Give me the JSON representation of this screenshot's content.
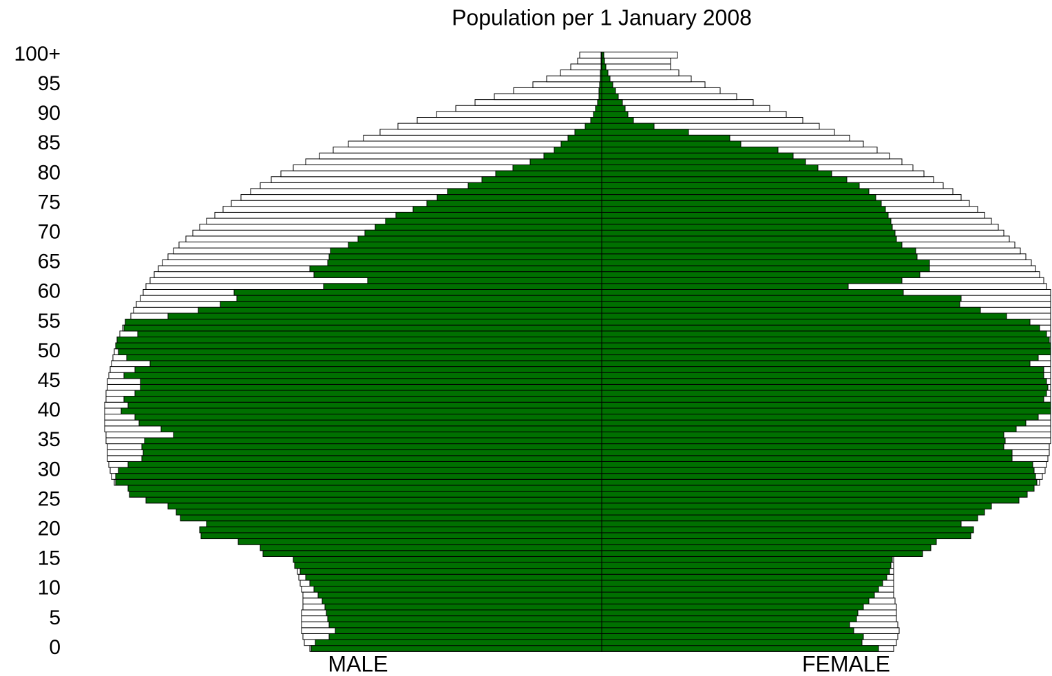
{
  "chart_data": {
    "type": "pyramid",
    "title": "Population per 1 January 2008",
    "categories": [
      "0",
      null,
      null,
      null,
      null,
      "5",
      null,
      null,
      null,
      null,
      "10",
      null,
      null,
      null,
      null,
      "15",
      null,
      null,
      null,
      null,
      "20",
      null,
      null,
      null,
      null,
      "25",
      null,
      null,
      null,
      null,
      "30",
      null,
      null,
      null,
      null,
      "35",
      null,
      null,
      null,
      null,
      "40",
      null,
      null,
      null,
      null,
      "45",
      null,
      null,
      null,
      null,
      "50",
      null,
      null,
      null,
      null,
      "55",
      null,
      null,
      null,
      null,
      "60",
      null,
      null,
      null,
      null,
      "65",
      null,
      null,
      null,
      null,
      "70",
      null,
      null,
      null,
      null,
      "75",
      null,
      null,
      null,
      null,
      "80",
      null,
      null,
      null,
      null,
      "85",
      null,
      null,
      null,
      null,
      "90",
      null,
      null,
      null,
      null,
      "95",
      null,
      null,
      null,
      null,
      "100+"
    ],
    "xlim": [
      0,
      722
    ],
    "series": [
      {
        "side": "left",
        "color": "#ffffff",
        "values": [
          424,
          432,
          434,
          436,
          436,
          436,
          436,
          434,
          434,
          434,
          436,
          438,
          440,
          442,
          446,
          448,
          492,
          496,
          528,
          582,
          584,
          574,
          612,
          618,
          630,
          662,
          686,
          688,
          708,
          712,
          714,
          716,
          718,
          718,
          718,
          720,
          720,
          722,
          722,
          722,
          722,
          722,
          720,
          720,
          718,
          718,
          716,
          714,
          712,
          710,
          708,
          706,
          704,
          700,
          696,
          692,
          684,
          680,
          676,
          670,
          666,
          662,
          656,
          650,
          644,
          638,
          630,
          622,
          614,
          604,
          594,
          584,
          574,
          562,
          550,
          538,
          524,
          510,
          496,
          480,
          466,
          448,
          430,
          410,
          390,
          368,
          346,
          322,
          296,
          268,
          240,
          212,
          184,
          156,
          128,
          100,
          80,
          60,
          45,
          35,
          32
        ]
      },
      {
        "side": "right",
        "color": "#ffffff",
        "values": [
          424,
          428,
          430,
          432,
          430,
          428,
          428,
          428,
          426,
          424,
          424,
          424,
          424,
          424,
          424,
          424,
          466,
          478,
          486,
          536,
          540,
          522,
          546,
          556,
          566,
          606,
          618,
          628,
          636,
          640,
          644,
          646,
          648,
          650,
          650,
          652,
          652,
          652,
          652,
          652,
          652,
          652,
          652,
          652,
          652,
          652,
          652,
          652,
          652,
          652,
          652,
          652,
          652,
          652,
          652,
          652,
          652,
          652,
          652,
          652,
          652,
          646,
          642,
          636,
          630,
          624,
          616,
          608,
          600,
          592,
          584,
          576,
          566,
          556,
          546,
          534,
          522,
          510,
          496,
          482,
          468,
          452,
          436,
          418,
          400,
          380,
          360,
          338,
          316,
          292,
          268,
          244,
          220,
          196,
          172,
          150,
          130,
          112,
          100,
          100,
          110
        ]
      },
      {
        "name": "MALE",
        "side": "left",
        "color": "#007000",
        "values": [
          422,
          416,
          396,
          387,
          396,
          398,
          400,
          402,
          406,
          412,
          418,
          424,
          430,
          438,
          446,
          448,
          492,
          496,
          528,
          582,
          584,
          574,
          612,
          618,
          630,
          662,
          686,
          688,
          706,
          706,
          702,
          688,
          668,
          666,
          668,
          664,
          622,
          640,
          672,
          678,
          698,
          688,
          694,
          678,
          670,
          670,
          694,
          678,
          656,
          690,
          702,
          706,
          704,
          674,
          694,
          692,
          630,
          586,
          554,
          530,
          534,
          404,
          340,
          418,
          424,
          398,
          396,
          394,
          368,
          354,
          344,
          329,
          314,
          299,
          274,
          254,
          239,
          224,
          194,
          174,
          154,
          129,
          104,
          84,
          69,
          59,
          49,
          39,
          24,
          16,
          12,
          9,
          6,
          4,
          4,
          3,
          2,
          2,
          1,
          1,
          1
        ]
      },
      {
        "name": "FEMALE",
        "side": "right",
        "color": "#007000",
        "values": [
          402,
          378,
          380,
          366,
          360,
          370,
          372,
          380,
          388,
          396,
          402,
          408,
          414,
          418,
          420,
          422,
          466,
          478,
          486,
          536,
          540,
          522,
          546,
          556,
          566,
          606,
          618,
          628,
          632,
          630,
          628,
          626,
          596,
          596,
          584,
          586,
          584,
          602,
          616,
          634,
          652,
          652,
          642,
          646,
          648,
          646,
          642,
          642,
          622,
          634,
          652,
          652,
          650,
          646,
          636,
          622,
          588,
          550,
          520,
          522,
          438,
          358,
          436,
          462,
          476,
          476,
          458,
          456,
          436,
          428,
          426,
          422,
          420,
          416,
          412,
          406,
          398,
          388,
          374,
          356,
          334,
          314,
          296,
          278,
          256,
          202,
          186,
          126,
          76,
          46,
          38,
          34,
          30,
          24,
          20,
          16,
          12,
          9,
          6,
          4,
          3
        ]
      }
    ]
  }
}
